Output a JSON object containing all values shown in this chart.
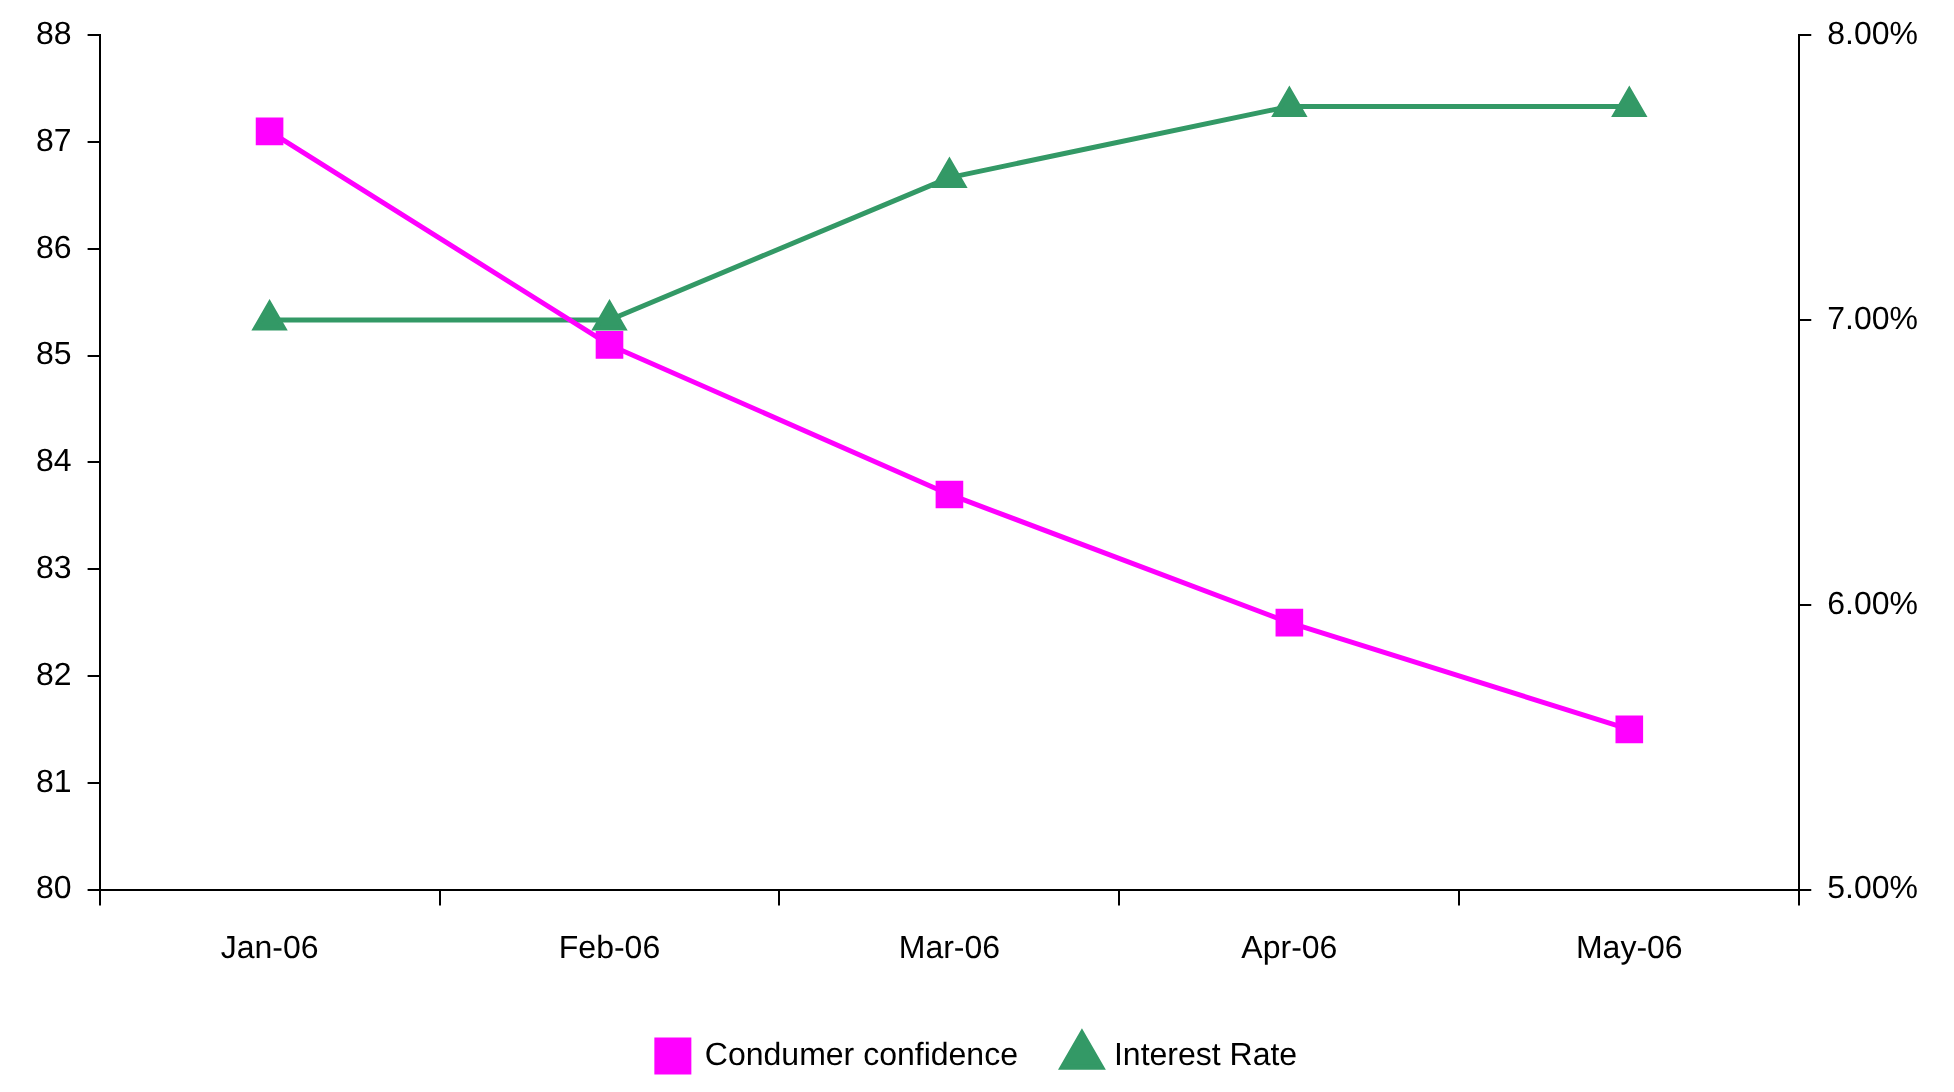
{
  "chart_data": {
    "type": "line",
    "categories": [
      "Jan-06",
      "Feb-06",
      "Mar-06",
      "Apr-06",
      "May-06"
    ],
    "series": [
      {
        "name": "Condumer confidence",
        "color": "#ff00ff",
        "marker": "square",
        "values": [
          87.1,
          85.1,
          83.7,
          82.5,
          81.5
        ]
      },
      {
        "name": "Interest Rate",
        "color": "#339966",
        "marker": "triangle",
        "axis": "y2",
        "values": [
          7.0,
          7.0,
          7.5,
          7.75,
          7.75
        ]
      }
    ],
    "ylim": [
      80,
      88
    ],
    "yticks": [
      80,
      81,
      82,
      83,
      84,
      85,
      86,
      87,
      88
    ],
    "y2lim": [
      5,
      8
    ],
    "y2ticks": [
      {
        "value": 5,
        "label": "5.00%"
      },
      {
        "value": 6,
        "label": "6.00%"
      },
      {
        "value": 7,
        "label": "7.00%"
      },
      {
        "value": 8,
        "label": "8.00%"
      }
    ],
    "grid": false,
    "legend": "bottom",
    "line_style": "solid"
  }
}
